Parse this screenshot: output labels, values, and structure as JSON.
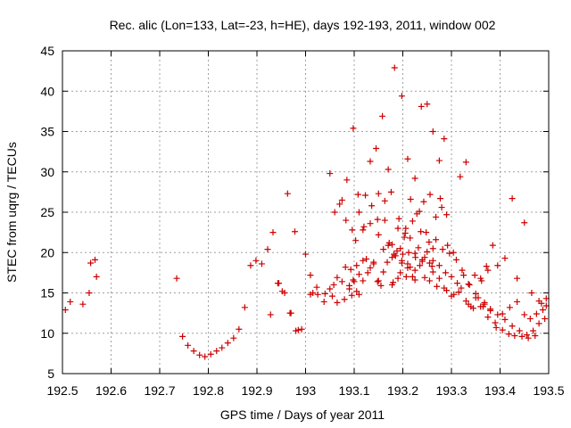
{
  "chart_data": {
    "type": "scatter",
    "title": "Rec. alic (Lon=133, Lat=-23, h=HE), days 192-193, 2011, window 002",
    "xlabel": "GPS time / Days of year 2011",
    "ylabel": "STEC from uqrg / TECUs",
    "xlim": [
      192.5,
      193.5
    ],
    "ylim": [
      5,
      45
    ],
    "xticks": [
      192.5,
      192.6,
      192.7,
      192.8,
      192.9,
      193,
      193.1,
      193.2,
      193.3,
      193.4,
      193.5
    ],
    "xtick_labels": [
      "192.5",
      "192.6",
      "192.7",
      "192.8",
      "192.9",
      "193",
      "193.1",
      "193.2",
      "193.3",
      "193.4",
      "193.5"
    ],
    "yticks": [
      5,
      10,
      15,
      20,
      25,
      30,
      35,
      40,
      45
    ],
    "ytick_labels": [
      "5",
      "10",
      "15",
      "20",
      "25",
      "30",
      "35",
      "40",
      "45"
    ],
    "grid": true,
    "legend": "none",
    "marker": "plus",
    "color": "#cc0000",
    "series": [
      {
        "x": [
          192.506,
          192.516,
          192.542,
          192.555,
          192.558,
          192.567,
          192.57,
          192.735,
          192.747,
          192.758,
          192.77,
          192.782,
          192.793,
          192.805,
          192.817,
          192.828,
          192.84,
          192.852,
          192.863,
          192.875,
          192.887,
          192.898,
          192.91,
          192.922,
          192.933,
          192.945,
          192.957,
          192.968,
          192.98,
          192.992,
          192.928,
          192.943,
          192.952,
          192.963,
          192.97,
          192.978,
          192.985,
          193.0,
          193.01,
          193.015,
          193.025,
          193.04,
          193.055,
          193.065,
          193.08,
          193.09,
          193.095,
          193.1,
          193.105,
          193.11,
          193.01,
          193.023,
          193.038,
          193.05,
          193.058,
          193.065,
          193.075,
          193.082,
          193.09,
          193.098,
          193.11,
          193.118,
          193.125,
          193.133,
          193.14,
          193.148,
          193.155,
          193.093,
          193.105,
          193.118,
          193.128,
          193.14,
          193.15,
          193.16,
          193.168,
          193.178,
          193.188,
          193.198,
          193.207,
          193.215,
          193.225,
          193.235,
          193.245,
          193.255,
          193.262,
          193.05,
          193.06,
          193.075,
          193.085,
          193.098,
          193.108,
          193.12,
          193.133,
          193.145,
          193.158,
          193.17,
          193.183,
          193.198,
          193.21,
          193.225,
          193.238,
          193.25,
          193.262,
          193.275,
          193.285,
          193.07,
          193.083,
          193.096,
          193.11,
          193.123,
          193.136,
          193.15,
          193.163,
          193.176,
          193.19,
          193.203,
          193.216,
          193.229,
          193.243,
          193.256,
          193.268,
          193.28,
          193.292,
          193.103,
          193.118,
          193.133,
          193.148,
          193.163,
          193.178,
          193.192,
          193.206,
          193.22,
          193.234,
          193.248,
          193.262,
          193.277,
          193.29,
          193.304,
          193.318,
          193.33,
          193.15,
          193.16,
          193.172,
          193.182,
          193.195,
          193.205,
          193.215,
          193.225,
          193.237,
          193.25,
          193.262,
          193.275,
          193.288,
          193.3,
          193.312,
          193.325,
          193.337,
          193.35,
          193.362,
          193.375,
          193.17,
          193.185,
          193.198,
          193.212,
          193.226,
          193.24,
          193.254,
          193.268,
          193.282,
          193.296,
          193.31,
          193.322,
          193.335,
          193.348,
          193.36,
          193.372,
          193.178,
          193.19,
          193.2,
          193.21,
          193.22,
          193.232,
          193.245,
          193.26,
          193.275,
          193.29,
          193.305,
          193.32,
          193.335,
          193.35,
          193.365,
          193.38,
          193.395,
          193.41,
          193.425,
          193.44,
          193.455,
          193.468,
          193.48,
          193.492,
          193.18,
          193.195,
          193.21,
          193.225,
          193.24,
          193.255,
          193.27,
          193.285,
          193.3,
          193.315,
          193.33,
          193.345,
          193.36,
          193.375,
          193.39,
          193.405,
          193.42,
          193.435,
          193.45,
          193.462,
          193.475,
          193.488,
          193.34,
          193.355,
          193.368,
          193.38,
          193.392,
          193.405,
          193.418,
          193.43,
          193.445,
          193.458,
          193.472,
          193.485,
          193.495,
          193.368,
          193.385,
          193.395,
          193.41,
          193.425,
          193.435,
          193.45,
          193.465,
          193.48,
          193.495
        ],
        "y": [
          12.9,
          13.9,
          13.6,
          15.0,
          18.7,
          19.1,
          17.0,
          16.8,
          9.6,
          8.5,
          7.8,
          7.3,
          7.1,
          7.4,
          7.8,
          8.2,
          8.8,
          9.4,
          10.5,
          13.2,
          18.4,
          19.0,
          18.6,
          20.4,
          22.5,
          16.2,
          15.0,
          12.5,
          10.3,
          10.5,
          12.3,
          16.2,
          15.2,
          27.3,
          12.5,
          22.6,
          10.4,
          19.8,
          17.2,
          15.0,
          14.8,
          14.9,
          14.6,
          13.8,
          14.2,
          15.5,
          14.7,
          16.4,
          15.2,
          14.8,
          14.8,
          15.7,
          13.9,
          15.5,
          16.0,
          16.9,
          16.4,
          18.2,
          15.9,
          16.6,
          17.3,
          16.5,
          19.2,
          18.1,
          18.6,
          16.4,
          15.9,
          17.9,
          18.4,
          19.0,
          17.5,
          18.8,
          16.5,
          17.6,
          18.8,
          19.4,
          20.2,
          19.0,
          17.0,
          18.2,
          16.6,
          18.4,
          16.9,
          18.7,
          17.6,
          29.8,
          25.0,
          26.5,
          29.0,
          35.4,
          27.2,
          23.2,
          31.3,
          32.9,
          36.9,
          30.3,
          42.9,
          39.4,
          31.6,
          29.2,
          38.1,
          38.4,
          35.0,
          31.4,
          34.1,
          26.0,
          24.0,
          22.8,
          25.0,
          27.1,
          25.8,
          27.3,
          24.0,
          27.5,
          23.0,
          21.9,
          26.6,
          24.8,
          26.3,
          27.2,
          24.4,
          25.6,
          20.9,
          21.5,
          22.8,
          23.6,
          24.1,
          26.4,
          21.0,
          24.2,
          23.0,
          23.9,
          25.1,
          22.5,
          20.5,
          26.7,
          24.7,
          20.0,
          29.4,
          31.2,
          22.2,
          20.4,
          21.2,
          19.8,
          20.5,
          22.4,
          21.8,
          19.9,
          22.6,
          20.1,
          19.0,
          18.4,
          17.5,
          17.0,
          16.2,
          17.2,
          16.0,
          14.9,
          16.5,
          17.8,
          20.9,
          19.6,
          18.7,
          20.0,
          19.4,
          19.1,
          21.3,
          21.6,
          20.4,
          19.9,
          19.1,
          17.8,
          16.1,
          17.2,
          16.8,
          18.3,
          16.0,
          16.8,
          19.8,
          18.6,
          17.0,
          20.6,
          19.4,
          18.3,
          16.8,
          15.3,
          14.8,
          15.6,
          13.6,
          14.4,
          13.3,
          12.8,
          12.3,
          11.7,
          10.9,
          10.3,
          9.8,
          10.3,
          11.2,
          11.8,
          16.3,
          17.5,
          18.1,
          17.8,
          18.9,
          16.5,
          15.8,
          15.6,
          14.6,
          15.1,
          14.0,
          13.1,
          13.3,
          12.0,
          11.3,
          12.4,
          13.2,
          13.9,
          12.3,
          11.8,
          12.4,
          12.9,
          13.3,
          14.4,
          13.8,
          13.0,
          10.7,
          10.4,
          9.9,
          9.7,
          9.6,
          9.4,
          9.7,
          13.7,
          14.3,
          13.6,
          20.9,
          18.4,
          19.3,
          26.7,
          16.8,
          23.7,
          15.0,
          14.0,
          13.4
        ]
      }
    ]
  }
}
